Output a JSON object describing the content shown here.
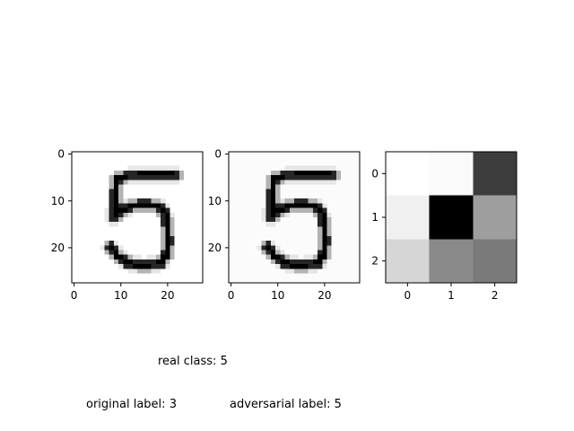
{
  "captions": {
    "real_label": "real class:",
    "real_value": "5",
    "original_label": "original label:",
    "original_value": "3",
    "adversarial_label": "adversarial label:",
    "adversarial_value": "5"
  },
  "chart_data": [
    {
      "type": "heatmap",
      "name": "original-image",
      "colormap": "gray_r",
      "grid_size": 28,
      "xlim": [
        -0.5,
        27.5
      ],
      "ylim": [
        27.5,
        -0.5
      ],
      "x_ticks": [
        0,
        10,
        20
      ],
      "y_ticks": [
        0,
        10,
        20
      ],
      "background_level": 0.0,
      "grid": false,
      "strokes": [
        [
          [
            22.0,
            4.5
          ],
          [
            20.0,
            4.4
          ],
          [
            16.0,
            4.4
          ],
          [
            12.0,
            4.5
          ],
          [
            9.3,
            5.2
          ]
        ],
        [
          [
            9.3,
            5.2
          ],
          [
            8.8,
            8.0
          ],
          [
            8.7,
            11.5
          ],
          [
            8.6,
            13.5
          ]
        ],
        [
          [
            8.6,
            13.5
          ],
          [
            10.5,
            11.7
          ],
          [
            13.0,
            11.0
          ],
          [
            16.0,
            10.8
          ],
          [
            18.5,
            11.3
          ],
          [
            19.6,
            13.0
          ],
          [
            20.0,
            16.0
          ],
          [
            20.1,
            19.0
          ],
          [
            19.8,
            21.6
          ],
          [
            18.5,
            23.2
          ],
          [
            15.5,
            23.8
          ],
          [
            12.0,
            23.5
          ],
          [
            9.5,
            22.0
          ],
          [
            7.6,
            19.8
          ]
        ]
      ]
    },
    {
      "type": "heatmap",
      "name": "adversarial-image",
      "colormap": "gray_r",
      "grid_size": 28,
      "xlim": [
        -0.5,
        27.5
      ],
      "ylim": [
        27.5,
        -0.5
      ],
      "x_ticks": [
        0,
        10,
        20
      ],
      "y_ticks": [
        0,
        10,
        20
      ],
      "background_level": 0.015,
      "grid": false,
      "strokes": [
        [
          [
            22.0,
            4.5
          ],
          [
            20.0,
            4.4
          ],
          [
            16.0,
            4.4
          ],
          [
            12.0,
            4.5
          ],
          [
            9.3,
            5.2
          ]
        ],
        [
          [
            9.3,
            5.2
          ],
          [
            8.8,
            8.0
          ],
          [
            8.7,
            11.5
          ],
          [
            8.6,
            13.5
          ]
        ],
        [
          [
            8.6,
            13.5
          ],
          [
            10.5,
            11.7
          ],
          [
            13.0,
            11.0
          ],
          [
            16.0,
            10.8
          ],
          [
            18.5,
            11.3
          ],
          [
            19.6,
            13.0
          ],
          [
            20.0,
            16.0
          ],
          [
            20.1,
            19.0
          ],
          [
            19.8,
            21.6
          ],
          [
            18.5,
            23.2
          ],
          [
            15.5,
            23.8
          ],
          [
            12.0,
            23.5
          ],
          [
            9.5,
            22.0
          ],
          [
            7.6,
            19.8
          ]
        ]
      ]
    },
    {
      "type": "heatmap",
      "name": "perturbation-kernel",
      "colormap": "gray_r",
      "grid_size": 3,
      "xlim": [
        -0.5,
        2.5
      ],
      "ylim": [
        2.5,
        -0.5
      ],
      "x_ticks": [
        0,
        1,
        2
      ],
      "y_ticks": [
        0,
        1,
        2
      ],
      "grid": false,
      "values": [
        [
          0.0,
          0.02,
          0.76
        ],
        [
          0.06,
          1.0,
          0.38
        ],
        [
          0.16,
          0.46,
          0.52
        ]
      ]
    }
  ]
}
